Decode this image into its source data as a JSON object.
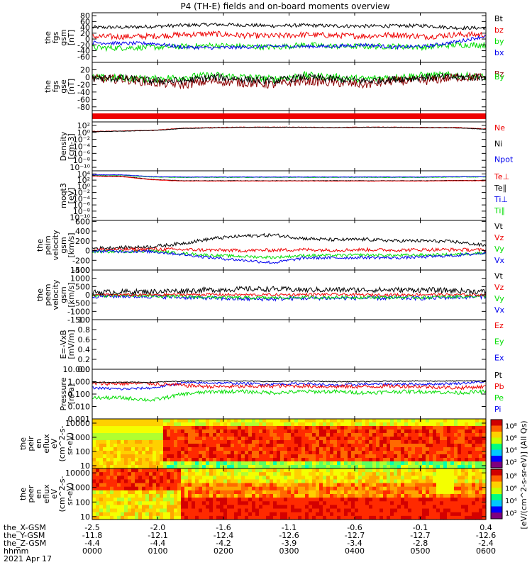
{
  "title": "P4 (TH-E) fields and on-board moments overview",
  "colors": {
    "black": "#000000",
    "red": "#ee0000",
    "green": "#00dd00",
    "blue": "#0000ee",
    "darkred": "#8b0000"
  },
  "chart_data": [
    {
      "type": "line",
      "ylabel": [
        "the",
        "fgs",
        "gsm",
        "[nT]"
      ],
      "ylim": [
        -80,
        90
      ],
      "ticks": [
        "80",
        "60",
        "40",
        "20",
        "0",
        "-20",
        "-40",
        "-60"
      ],
      "tick_values": [
        80,
        60,
        40,
        20,
        0,
        -20,
        -40,
        -60
      ],
      "legend": [
        {
          "name": "Bt",
          "color": "#000000"
        },
        {
          "name": "bz",
          "color": "#ee0000"
        },
        {
          "name": "by",
          "color": "#00dd00"
        },
        {
          "name": "bx",
          "color": "#0000ee"
        }
      ],
      "series": [
        {
          "name": "Bt",
          "color": "#000000",
          "mean": [
            40,
            40,
            43,
            47,
            50,
            48,
            45,
            47,
            45,
            44,
            45,
            46,
            38,
            38
          ],
          "noise": 6
        },
        {
          "name": "bz",
          "color": "#ee0000",
          "mean": [
            8,
            8,
            10,
            15,
            18,
            12,
            10,
            15,
            12,
            10,
            15,
            8,
            15,
            15
          ],
          "noise": 10
        },
        {
          "name": "by",
          "color": "#00dd00",
          "mean": [
            -30,
            -30,
            -28,
            -26,
            -22,
            -25,
            -28,
            -20,
            -25,
            -25,
            -25,
            -28,
            -20,
            -20
          ],
          "noise": 10
        },
        {
          "name": "bx",
          "color": "#0000ee",
          "mean": [
            -12,
            -15,
            -15,
            -28,
            -30,
            -28,
            -25,
            -25,
            -25,
            -20,
            -28,
            -25,
            -10,
            10
          ],
          "noise": 6
        }
      ]
    },
    {
      "type": "line",
      "ylabel": [
        "the",
        "fgs",
        "gse",
        "[nT]"
      ],
      "ylim": [
        -90,
        40
      ],
      "ticks": [
        "20",
        "0",
        "-20",
        "-40",
        "-60",
        "-80"
      ],
      "tick_values": [
        20,
        0,
        -20,
        -40,
        -60,
        -80
      ],
      "legend": [
        {
          "name": "Bz",
          "color": "#8b0000"
        },
        {
          "name": "By",
          "color": "#00dd00"
        }
      ],
      "series": [
        {
          "name": "By",
          "color": "#00dd00",
          "mean": [
            -2,
            -2,
            -5,
            0,
            5,
            0,
            -5,
            5,
            0,
            -5,
            0,
            5,
            5,
            0
          ],
          "noise": 10
        },
        {
          "name": "Bz",
          "color": "#8b0000",
          "mean": [
            -5,
            -5,
            -15,
            -20,
            -10,
            -15,
            -20,
            -10,
            -15,
            -20,
            -10,
            -10,
            0,
            0
          ],
          "noise": 12
        },
        {
          "name": "B",
          "color": "#000000",
          "mean": [
            -3,
            -3,
            -10,
            -10,
            0,
            -5,
            -10,
            0,
            -5,
            -10,
            -5,
            0,
            0,
            0
          ],
          "noise": 10
        }
      ]
    },
    {
      "type": "band",
      "ylabel": [],
      "ticks": [],
      "legend": [],
      "series": [
        {
          "name": "",
          "color": "#ee0000"
        }
      ]
    },
    {
      "type": "line",
      "scale": "log",
      "ylabel": [
        "Density",
        "[cm-3]"
      ],
      "ylim_exp": [
        -11,
        3
      ],
      "ticks": [
        "10²",
        "10⁰",
        "10⁻²",
        "10⁻⁴",
        "10⁻⁶",
        "10⁻⁸",
        "10⁻¹⁰"
      ],
      "tick_values": [
        2,
        0,
        -2,
        -4,
        -6,
        -8,
        -10
      ],
      "legend": [
        {
          "name": "Ne",
          "color": "#ee0000"
        },
        {
          "name": "Ni",
          "color": "#000000"
        },
        {
          "name": "Npot",
          "color": "#0000ee"
        }
      ],
      "series": [
        {
          "name": "Ne",
          "color": "#ee0000",
          "mean": [
            0.3,
            0.4,
            0.6,
            1.2,
            1.4,
            1.5,
            1.5,
            1.5,
            1.4,
            1.5,
            1.5,
            1.4,
            1.4,
            1.0
          ],
          "noise": 0.08
        },
        {
          "name": "Ni",
          "color": "#000000",
          "mean": [
            0.2,
            0.35,
            0.55,
            1.1,
            1.3,
            1.45,
            1.45,
            1.45,
            1.35,
            1.45,
            1.45,
            1.35,
            1.3,
            0.9
          ],
          "noise": 0.06
        }
      ]
    },
    {
      "type": "line",
      "scale": "log",
      "ylabel": [
        "moqt3",
        "[eV]"
      ],
      "ylim_exp": [
        -11,
        5
      ],
      "ticks": [
        "10⁴",
        "10²",
        "10⁰",
        "10⁻²",
        "10⁻⁴",
        "10⁻⁶",
        "10⁻⁸",
        "10⁻¹⁰"
      ],
      "tick_values": [
        4,
        2,
        0,
        -2,
        -4,
        -6,
        -8,
        -10
      ],
      "legend": [
        {
          "name": "Te⊥",
          "color": "#ee0000"
        },
        {
          "name": "Te∥",
          "color": "#000000"
        },
        {
          "name": "Ti⊥",
          "color": "#0000ee"
        },
        {
          "name": "Ti∥",
          "color": "#00dd00"
        }
      ],
      "series": [
        {
          "name": "Ti∥",
          "color": "#00dd00",
          "mean": [
            3.6,
            3.6,
            3.0,
            2.9,
            2.9,
            2.9,
            2.9,
            2.9,
            2.9,
            2.9,
            2.9,
            2.9,
            3.0,
            3.0
          ],
          "noise": 0.08
        },
        {
          "name": "Ti⊥",
          "color": "#0000ee",
          "mean": [
            3.7,
            3.7,
            3.1,
            3.0,
            3.0,
            3.0,
            3.0,
            3.0,
            3.0,
            3.0,
            3.0,
            3.0,
            3.1,
            3.1
          ],
          "noise": 0.06
        },
        {
          "name": "Te∥",
          "color": "#000000",
          "mean": [
            3.4,
            3.2,
            2.2,
            1.8,
            1.8,
            1.8,
            1.8,
            1.8,
            1.8,
            1.8,
            1.8,
            1.8,
            1.9,
            1.9
          ],
          "noise": 0.06
        },
        {
          "name": "Te⊥",
          "color": "#ee0000",
          "mean": [
            3.3,
            3.1,
            2.1,
            1.7,
            1.7,
            1.7,
            1.7,
            1.7,
            1.7,
            1.7,
            1.7,
            1.7,
            1.8,
            1.8
          ],
          "noise": 0.06
        }
      ]
    },
    {
      "type": "line",
      "ylabel": [
        "the",
        "peim",
        "velocity",
        "gsm",
        "[km/s]"
      ],
      "ylim": [
        -400,
        620
      ],
      "ticks": [
        "600",
        "400",
        "200",
        "0",
        "-200",
        "-400"
      ],
      "tick_values": [
        600,
        400,
        200,
        0,
        -200,
        -400
      ],
      "legend": [
        {
          "name": "Vt",
          "color": "#000000"
        },
        {
          "name": "Vz",
          "color": "#ee0000"
        },
        {
          "name": "Vy",
          "color": "#00dd00"
        },
        {
          "name": "Vx",
          "color": "#0000ee"
        }
      ],
      "series": [
        {
          "name": "Vt",
          "color": "#000000",
          "mean": [
            50,
            60,
            80,
            150,
            250,
            300,
            320,
            250,
            220,
            230,
            200,
            200,
            180,
            100
          ],
          "noise": 35
        },
        {
          "name": "Vy",
          "color": "#00dd00",
          "mean": [
            -20,
            -20,
            -10,
            -60,
            -100,
            -120,
            -140,
            -100,
            -100,
            -90,
            -100,
            -90,
            -80,
            -40
          ],
          "noise": 30
        },
        {
          "name": "Vz",
          "color": "#ee0000",
          "mean": [
            20,
            20,
            30,
            20,
            10,
            0,
            10,
            20,
            10,
            20,
            10,
            20,
            20,
            10
          ],
          "noise": 35
        },
        {
          "name": "Vx",
          "color": "#0000ee",
          "mean": [
            -10,
            -15,
            -20,
            -80,
            -150,
            -200,
            -250,
            -150,
            -150,
            -140,
            -150,
            -130,
            -100,
            -50
          ],
          "noise": 30
        }
      ]
    },
    {
      "type": "line",
      "ylabel": [
        "the",
        "peem",
        "velocity",
        "gsm",
        "[km/s]"
      ],
      "ylim": [
        -1500,
        1500
      ],
      "ticks": [
        "1500",
        "1000",
        "500",
        "0",
        "-500",
        "-1000",
        "-1500"
      ],
      "tick_values": [
        1500,
        1000,
        500,
        0,
        -500,
        -1000,
        -1500
      ],
      "legend": [
        {
          "name": "Vt",
          "color": "#000000"
        },
        {
          "name": "Vz",
          "color": "#ee0000"
        },
        {
          "name": "Vy",
          "color": "#00dd00"
        },
        {
          "name": "Vx",
          "color": "#0000ee"
        }
      ],
      "series": [
        {
          "name": "Vx",
          "color": "#0000ee",
          "mean": [
            -80,
            -80,
            -100,
            -150,
            -200,
            -250,
            -250,
            -200,
            -200,
            -200,
            -200,
            -200,
            -150,
            -100
          ],
          "noise": 120
        },
        {
          "name": "Vy",
          "color": "#00dd00",
          "mean": [
            -50,
            -50,
            -60,
            -100,
            -150,
            -180,
            -180,
            -150,
            -150,
            -150,
            -150,
            -150,
            -100,
            -60
          ],
          "noise": 100
        },
        {
          "name": "Vz",
          "color": "#ee0000",
          "mean": [
            0,
            0,
            0,
            20,
            20,
            0,
            0,
            20,
            20,
            0,
            0,
            20,
            0,
            0
          ],
          "noise": 80
        },
        {
          "name": "Vt",
          "color": "#000000",
          "mean": [
            150,
            180,
            200,
            250,
            300,
            350,
            350,
            300,
            300,
            300,
            300,
            300,
            250,
            180
          ],
          "noise": 160
        }
      ]
    },
    {
      "type": "empty",
      "ylabel": [
        "E=-VxB",
        "[mV/m]"
      ],
      "ylim": [
        0,
        1
      ],
      "ticks": [
        "1.0",
        "0.8",
        "0.6",
        "0.4",
        "0.2",
        "0.0"
      ],
      "tick_values": [
        1.0,
        0.8,
        0.6,
        0.4,
        0.2,
        0.0
      ],
      "legend": [
        {
          "name": "Ez",
          "color": "#ee0000"
        },
        {
          "name": "Ey",
          "color": "#00dd00"
        },
        {
          "name": "Ex",
          "color": "#0000ee"
        }
      ],
      "series": []
    },
    {
      "type": "line",
      "scale": "log",
      "ylabel": [
        "Pressure",
        "[nPa]"
      ],
      "ylim_exp": [
        -3,
        1
      ],
      "ticks": [
        "10.000",
        "1.000",
        "0.100",
        "0.010",
        "0.001"
      ],
      "tick_values": [
        1,
        0,
        -1,
        -2,
        -3
      ],
      "legend": [
        {
          "name": "Pt",
          "color": "#000000"
        },
        {
          "name": "Pb",
          "color": "#ee0000"
        },
        {
          "name": "Pe",
          "color": "#00dd00"
        },
        {
          "name": "Pi",
          "color": "#0000ee"
        }
      ],
      "series": [
        {
          "name": "Pe",
          "color": "#00dd00",
          "mean": [
            -1.3,
            -1.3,
            -1.5,
            -1.0,
            -0.8,
            -0.8,
            -0.9,
            -0.8,
            -0.8,
            -0.9,
            -0.8,
            -0.8,
            -0.9,
            -0.8
          ],
          "noise": 0.15
        },
        {
          "name": "Pi",
          "color": "#0000ee",
          "mean": [
            -0.5,
            -0.6,
            -0.5,
            -0.1,
            -0.1,
            -0.15,
            -0.2,
            -0.15,
            -0.3,
            -0.2,
            -0.2,
            -0.2,
            -0.15,
            0.0
          ],
          "noise": 0.1
        },
        {
          "name": "Pb",
          "color": "#ee0000",
          "mean": [
            -0.15,
            -0.15,
            -0.15,
            -0.3,
            -0.4,
            -0.4,
            -0.35,
            -0.35,
            -0.4,
            -0.4,
            -0.35,
            -0.4,
            -0.5,
            -0.4
          ],
          "noise": 0.15
        },
        {
          "name": "Pt",
          "color": "#000000",
          "mean": [
            -0.05,
            -0.05,
            -0.05,
            0.05,
            0.08,
            0.05,
            0.0,
            0.05,
            0.0,
            0.0,
            0.05,
            0.05,
            0.05,
            0.08
          ],
          "noise": 0.04
        }
      ]
    },
    {
      "type": "heatmap",
      "ylabel": [
        "the",
        "peir",
        "en",
        "eflux",
        "eV",
        "(cm^2-s-",
        "sr-eV)"
      ],
      "ylim_exp": [
        0.8,
        4.3
      ],
      "ticks": [
        "10000",
        "1000",
        "100",
        "10"
      ],
      "tick_values": [
        4,
        3,
        2,
        1
      ],
      "legend": [],
      "colorbar_ticks": [
        "10⁸",
        "10⁶",
        "10⁴",
        "10²"
      ],
      "colorbar_tick_values": [
        8,
        6,
        4,
        2
      ],
      "series": []
    },
    {
      "type": "heatmap",
      "ylabel": [
        "the",
        "peer",
        "en",
        "eflux",
        "eV",
        "(cm^2-s-",
        "sr-eV)"
      ],
      "ylim_exp": [
        0.8,
        4.3
      ],
      "ticks": [
        "10000",
        "1000",
        "100",
        "10"
      ],
      "tick_values": [
        4,
        3,
        2,
        1
      ],
      "legend": [],
      "colorbar_ticks": [
        "10⁸",
        "10⁶",
        "10⁴",
        "10²"
      ],
      "colorbar_tick_values": [
        8,
        6,
        4,
        2
      ],
      "series": []
    }
  ],
  "colorbar_label": "[eV/(cm^2-s-sr-eV)] (All Qs)",
  "xaxis": {
    "row_labels": [
      "the_X-GSM",
      "the_Y-GSM",
      "the_Z-GSM",
      "hhmm"
    ],
    "columns": [
      {
        "values": [
          "-2.5",
          "-11.8",
          "-4.4",
          "0000"
        ]
      },
      {
        "values": [
          "-2.0",
          "-12.1",
          "-4.4",
          "0100"
        ]
      },
      {
        "values": [
          "-1.6",
          "-12.4",
          "-4.2",
          "0200"
        ]
      },
      {
        "values": [
          "-1.1",
          "-12.6",
          "-3.9",
          "0300"
        ]
      },
      {
        "values": [
          "-0.6",
          "-12.7",
          "-3.4",
          "0400"
        ]
      },
      {
        "values": [
          "-0.1",
          "-12.7",
          "-2.8",
          "0500"
        ]
      },
      {
        "values": [
          "0.4",
          "-12.6",
          "-2.4",
          "0600"
        ]
      }
    ],
    "date": "2021 Apr 17"
  }
}
